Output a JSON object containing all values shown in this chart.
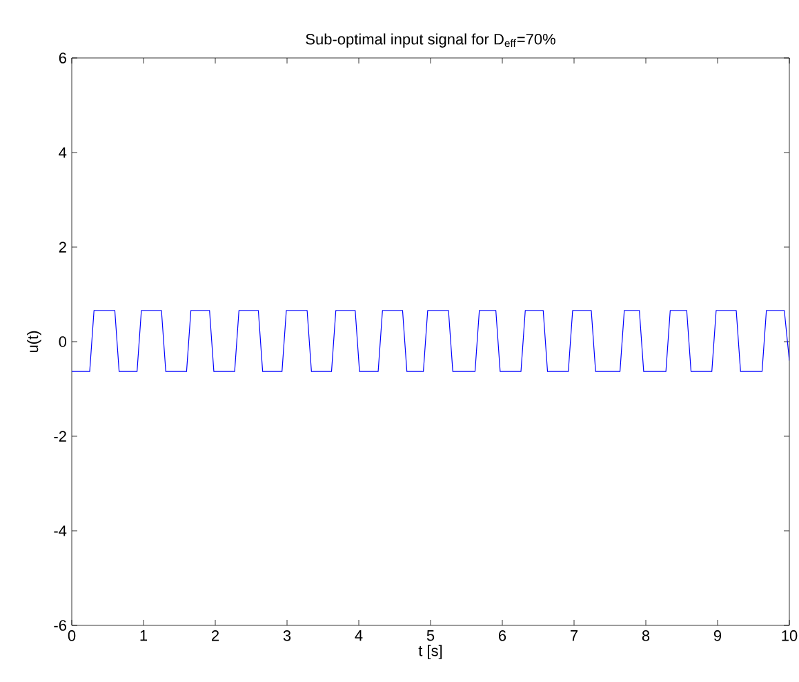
{
  "chart_data": {
    "type": "line",
    "title": "Sub-optimal input signal for D$_{eff}$=70%",
    "xlabel": "t [s]",
    "ylabel": "u(t)",
    "xlim": [
      0,
      10
    ],
    "ylim": [
      -6,
      6
    ],
    "xticks": [
      0,
      1,
      2,
      3,
      4,
      5,
      6,
      7,
      8,
      9,
      10
    ],
    "yticks": [
      -6,
      -4,
      -2,
      0,
      2,
      4,
      6
    ],
    "marker": "none",
    "line_style": "solid",
    "series": [
      {
        "color": "#0000ff",
        "x": [
          0,
          0.25,
          0.31,
          0.6,
          0.66,
          0.91,
          0.97,
          1.25,
          1.31,
          1.6,
          1.66,
          1.92,
          1.98,
          2.27,
          2.33,
          2.6,
          2.66,
          2.93,
          2.99,
          3.28,
          3.34,
          3.62,
          3.68,
          3.95,
          4.01,
          4.27,
          4.33,
          4.61,
          4.67,
          4.9,
          4.96,
          5.25,
          5.31,
          5.62,
          5.68,
          5.91,
          5.97,
          6.26,
          6.32,
          6.57,
          6.63,
          6.92,
          6.98,
          7.24,
          7.3,
          7.64,
          7.7,
          7.91,
          7.97,
          8.28,
          8.34,
          8.57,
          8.63,
          8.92,
          8.98,
          9.26,
          9.32,
          9.62,
          9.68,
          9.93,
          10
        ],
        "values": [
          -0.63,
          -0.63,
          0.66,
          0.66,
          -0.63,
          -0.63,
          0.66,
          0.66,
          -0.63,
          -0.63,
          0.66,
          0.66,
          -0.63,
          -0.63,
          0.66,
          0.66,
          -0.63,
          -0.63,
          0.66,
          0.66,
          -0.63,
          -0.63,
          0.66,
          0.66,
          -0.63,
          -0.63,
          0.66,
          0.66,
          -0.63,
          -0.63,
          0.66,
          0.66,
          -0.63,
          -0.63,
          0.66,
          0.66,
          -0.63,
          -0.63,
          0.66,
          0.66,
          -0.63,
          -0.63,
          0.66,
          0.66,
          -0.63,
          -0.63,
          0.66,
          0.66,
          -0.63,
          -0.63,
          0.66,
          0.66,
          -0.63,
          -0.63,
          0.66,
          0.66,
          -0.63,
          -0.63,
          0.66,
          0.66,
          -0.4
        ]
      }
    ]
  }
}
